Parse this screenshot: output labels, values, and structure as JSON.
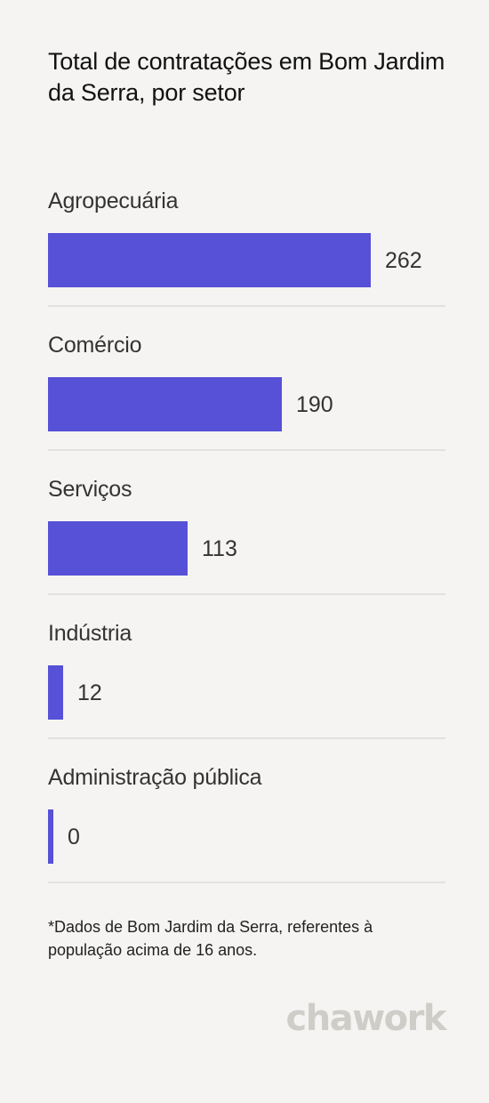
{
  "title": "Total de contratações em Bom Jardim da Serra, por setor",
  "footnote": "*Dados de Bom Jardim da Serra, referentes à população acima de 16 anos.",
  "logo": "chawork",
  "colors": {
    "bar": "#5651d7",
    "background": "#f5f4f2",
    "separator": "#e3e1de"
  },
  "chart_data": {
    "type": "bar",
    "orientation": "horizontal",
    "title": "Total de contratações em Bom Jardim da Serra, por setor",
    "categories": [
      "Agropecuária",
      "Comércio",
      "Serviços",
      "Indústria",
      "Administração pública"
    ],
    "values": [
      262,
      190,
      113,
      12,
      0
    ],
    "value_labels": [
      "262",
      "190",
      "113",
      "12",
      "0"
    ],
    "xlim": [
      0,
      262
    ],
    "grid": false,
    "legend": "none"
  }
}
